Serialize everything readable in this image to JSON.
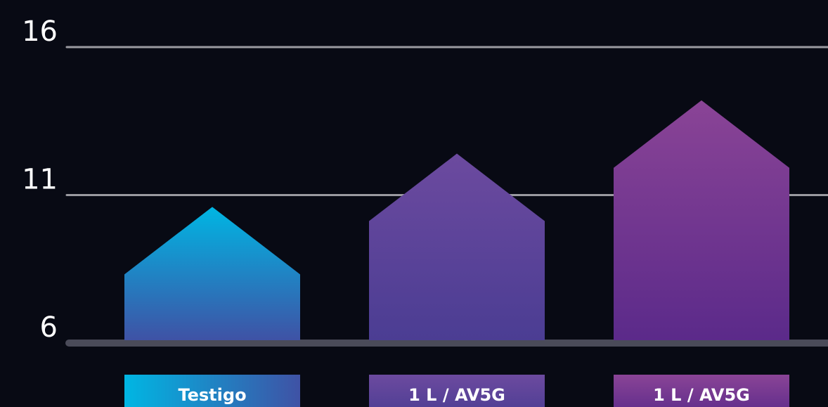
{
  "chart_data": {
    "type": "house-bar",
    "categories": [
      "Testigo",
      "1 L / AV5G",
      "1 L / AV5G"
    ],
    "values": [
      10.6,
      12.4,
      14.2
    ],
    "colors": [
      [
        "#00b6e3",
        "#3f52a5"
      ],
      [
        "#6c4a9f",
        "#4b3d93"
      ],
      [
        "#8a4496",
        "#5b2a8a"
      ]
    ],
    "ylim": [
      6,
      16
    ],
    "yticks": [
      6,
      11,
      16
    ],
    "grid": true
  }
}
